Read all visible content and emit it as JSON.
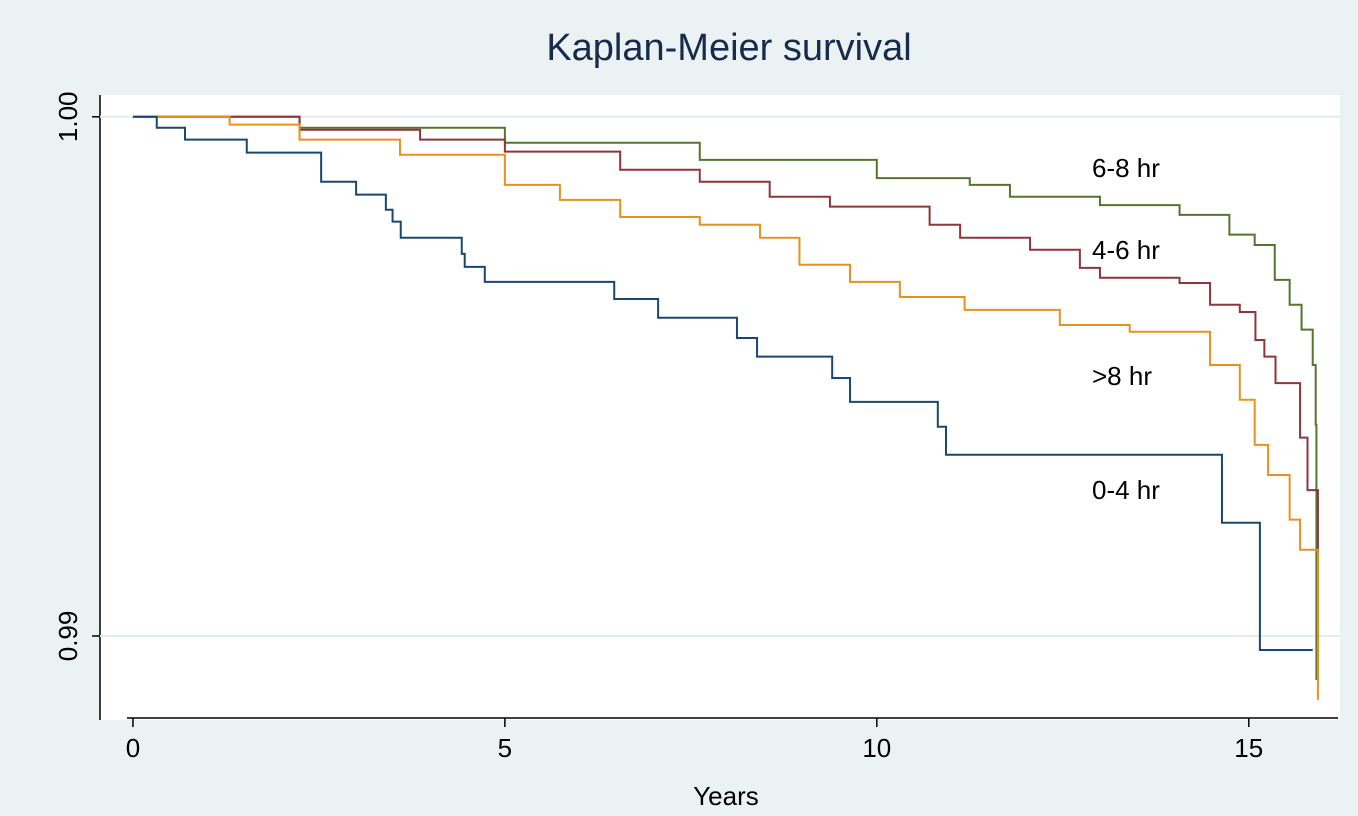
{
  "chart_data": {
    "type": "step",
    "title": "Kaplan-Meier survival",
    "x_label": "Years",
    "xlim": [
      -0.08,
      16.2
    ],
    "ylim": [
      0.98842,
      1.00042
    ],
    "xticks": [
      0,
      5,
      10,
      15
    ],
    "yticks": [
      {
        "value": 0.99,
        "label": "0.99"
      },
      {
        "value": 1,
        "label": "1.00"
      }
    ],
    "grid": true,
    "series": [
      {
        "name": "6-8 hr",
        "color": "#55752f",
        "x": [
          0,
          2.24,
          5,
          7.62,
          10,
          11.25,
          11.79,
          13,
          14.07,
          14.74,
          15.08,
          15.35,
          15.55,
          15.71,
          15.86,
          15.9,
          15.91
        ],
        "values": [
          1,
          0.99979,
          0.9995,
          0.99917,
          0.99882,
          0.99869,
          0.99846,
          0.9983,
          0.99811,
          0.99773,
          0.99753,
          0.99686,
          0.99638,
          0.9959,
          0.99522,
          0.99407,
          0.98915
        ]
      },
      {
        "name": "4-6 hr",
        "color": "#90353b",
        "x": [
          0,
          2.24,
          3.86,
          5,
          6.55,
          7.62,
          8.56,
          9.37,
          10.71,
          11.12,
          12.06,
          12.73,
          13,
          14.07,
          14.48,
          14.88,
          15.09,
          15.21,
          15.36,
          15.69,
          15.79,
          15.93
        ],
        "values": [
          1,
          0.99975,
          0.99956,
          0.99933,
          0.99898,
          0.99875,
          0.99846,
          0.99827,
          0.99792,
          0.99767,
          0.99744,
          0.99709,
          0.9969,
          0.9968,
          0.99638,
          0.99624,
          0.9957,
          0.99538,
          0.99487,
          0.99382,
          0.99281,
          0.98915
        ]
      },
      {
        "name": ">8 hr",
        "color": "#e8911f",
        "x": [
          0,
          1.3,
          2.24,
          3.59,
          5,
          5.74,
          6.55,
          7.62,
          8.43,
          8.96,
          9.64,
          10.31,
          11.18,
          12.46,
          13.4,
          14.48,
          14.88,
          15.08,
          15.26,
          15.55,
          15.69,
          15.93
        ],
        "values": [
          1,
          0.99985,
          0.99956,
          0.99927,
          0.99869,
          0.9984,
          0.99807,
          0.99792,
          0.99767,
          0.99715,
          0.99682,
          0.99653,
          0.99628,
          0.99599,
          0.99586,
          0.99522,
          0.99455,
          0.99368,
          0.9931,
          0.99224,
          0.99166,
          0.98877
        ]
      },
      {
        "name": "0-4 hr",
        "color": "#1a476f",
        "x": [
          0,
          0.32,
          0.7,
          1.53,
          2.53,
          3,
          3.4,
          3.49,
          3.6,
          4.42,
          4.46,
          4.73,
          6.47,
          7.06,
          8.12,
          8.39,
          9.4,
          9.64,
          10.82,
          10.93,
          14.64,
          15.15,
          15.86
        ],
        "values": [
          1,
          0.99979,
          0.99956,
          0.99931,
          0.99875,
          0.9985,
          0.99821,
          0.99798,
          0.99767,
          0.99736,
          0.99711,
          0.99682,
          0.99649,
          0.99613,
          0.99574,
          0.99538,
          0.99497,
          0.99451,
          0.99403,
          0.99349,
          0.99218,
          0.98973,
          0.98973
        ]
      }
    ]
  }
}
